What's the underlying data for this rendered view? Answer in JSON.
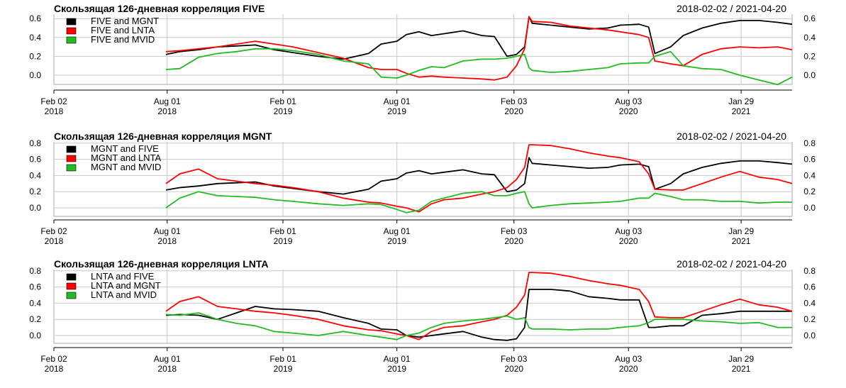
{
  "chart_data": [
    {
      "type": "line",
      "title": "Скользящая 126-дневная корреляция FIVE",
      "date_range": "2018-02-02 / 2021-04-20",
      "x_ticks": [
        {
          "day": 0,
          "line1": "Feb 02",
          "line2": "2018"
        },
        {
          "day": 180,
          "line1": "Aug 01",
          "line2": "2018"
        },
        {
          "day": 364,
          "line1": "Feb 01",
          "line2": "2019"
        },
        {
          "day": 545,
          "line1": "Aug 01",
          "line2": "2019"
        },
        {
          "day": 731,
          "line1": "Feb 03",
          "line2": "2020"
        },
        {
          "day": 913,
          "line1": "Aug 03",
          "line2": "2020"
        },
        {
          "day": 1092,
          "line1": "Jan 29",
          "line2": "2021"
        }
      ],
      "x_range": [
        0,
        1173
      ],
      "data_start_day": 178,
      "ylim": [
        -0.13,
        0.63
      ],
      "y_ticks": [
        "0.0",
        "0.2",
        "0.4",
        "0.6"
      ],
      "legend": [
        "FIVE and MGNT",
        "FIVE and LNTA",
        "FIVE and MVID"
      ],
      "series": [
        {
          "name": "FIVE and MGNT",
          "color": "#000000",
          "x": [
            178,
            200,
            230,
            260,
            290,
            320,
            350,
            380,
            420,
            460,
            500,
            520,
            545,
            560,
            580,
            600,
            620,
            650,
            680,
            700,
            720,
            735,
            748,
            755,
            760,
            790,
            820,
            850,
            880,
            900,
            930,
            945,
            955,
            980,
            1000,
            1030,
            1060,
            1090,
            1120,
            1150,
            1173
          ],
          "values": [
            0.22,
            0.25,
            0.27,
            0.3,
            0.31,
            0.32,
            0.27,
            0.24,
            0.2,
            0.17,
            0.23,
            0.33,
            0.36,
            0.43,
            0.46,
            0.42,
            0.44,
            0.47,
            0.42,
            0.41,
            0.2,
            0.22,
            0.3,
            0.62,
            0.55,
            0.53,
            0.51,
            0.49,
            0.5,
            0.53,
            0.54,
            0.51,
            0.23,
            0.3,
            0.42,
            0.5,
            0.55,
            0.58,
            0.58,
            0.56,
            0.54
          ]
        },
        {
          "name": "FIVE and LNTA",
          "color": "#ff0000",
          "x": [
            178,
            200,
            230,
            260,
            290,
            320,
            350,
            380,
            420,
            460,
            500,
            520,
            545,
            560,
            580,
            600,
            620,
            650,
            680,
            700,
            720,
            735,
            748,
            755,
            760,
            790,
            820,
            850,
            880,
            900,
            930,
            945,
            955,
            980,
            1000,
            1030,
            1060,
            1090,
            1120,
            1150,
            1173
          ],
          "values": [
            0.25,
            0.26,
            0.28,
            0.3,
            0.33,
            0.36,
            0.33,
            0.3,
            0.24,
            0.18,
            0.08,
            0.06,
            0.06,
            0.02,
            -0.02,
            -0.01,
            -0.02,
            -0.03,
            -0.04,
            -0.05,
            -0.02,
            0.1,
            0.28,
            0.62,
            0.57,
            0.56,
            0.52,
            0.5,
            0.48,
            0.46,
            0.43,
            0.4,
            0.15,
            0.12,
            0.1,
            0.22,
            0.28,
            0.3,
            0.29,
            0.3,
            0.27
          ]
        },
        {
          "name": "FIVE and MVID",
          "color": "#22bb22",
          "x": [
            178,
            200,
            230,
            260,
            290,
            320,
            350,
            380,
            420,
            460,
            500,
            520,
            545,
            560,
            580,
            600,
            620,
            650,
            680,
            700,
            720,
            735,
            748,
            755,
            760,
            790,
            820,
            850,
            880,
            900,
            930,
            945,
            955,
            980,
            1000,
            1030,
            1060,
            1090,
            1120,
            1150,
            1173
          ],
          "values": [
            0.06,
            0.07,
            0.19,
            0.23,
            0.25,
            0.28,
            0.28,
            0.26,
            0.22,
            0.15,
            0.12,
            -0.02,
            -0.03,
            0.0,
            0.05,
            0.09,
            0.08,
            0.15,
            0.17,
            0.17,
            0.18,
            0.2,
            0.22,
            0.08,
            0.05,
            0.03,
            0.04,
            0.06,
            0.08,
            0.12,
            0.13,
            0.13,
            0.2,
            0.25,
            0.1,
            0.07,
            0.06,
            0.0,
            -0.05,
            -0.1,
            -0.02
          ]
        }
      ]
    },
    {
      "type": "line",
      "title": "Скользящая 126-дневная корреляция MGNT",
      "date_range": "2018-02-02 / 2021-04-20",
      "x_ticks": [
        {
          "day": 0,
          "line1": "Feb 02",
          "line2": "2018"
        },
        {
          "day": 180,
          "line1": "Aug 01",
          "line2": "2018"
        },
        {
          "day": 364,
          "line1": "Feb 01",
          "line2": "2019"
        },
        {
          "day": 545,
          "line1": "Aug 01",
          "line2": "2019"
        },
        {
          "day": 731,
          "line1": "Feb 03",
          "line2": "2020"
        },
        {
          "day": 913,
          "line1": "Aug 03",
          "line2": "2020"
        },
        {
          "day": 1092,
          "line1": "Jan 29",
          "line2": "2021"
        }
      ],
      "x_range": [
        0,
        1173
      ],
      "data_start_day": 178,
      "ylim": [
        -0.12,
        0.8
      ],
      "y_ticks": [
        "0.0",
        "0.2",
        "0.4",
        "0.6",
        "0.8"
      ],
      "legend": [
        "MGNT and FIVE",
        "MGNT and LNTA",
        "MGNT and MVID"
      ],
      "series": [
        {
          "name": "MGNT and FIVE",
          "color": "#000000",
          "x": [
            178,
            200,
            230,
            260,
            290,
            320,
            350,
            380,
            420,
            460,
            500,
            520,
            545,
            560,
            580,
            600,
            620,
            650,
            680,
            700,
            720,
            735,
            748,
            755,
            760,
            790,
            820,
            850,
            880,
            900,
            930,
            945,
            955,
            980,
            1000,
            1030,
            1060,
            1090,
            1120,
            1150,
            1173
          ],
          "values": [
            0.22,
            0.25,
            0.27,
            0.3,
            0.31,
            0.32,
            0.27,
            0.24,
            0.2,
            0.17,
            0.23,
            0.33,
            0.36,
            0.43,
            0.46,
            0.42,
            0.44,
            0.47,
            0.42,
            0.41,
            0.2,
            0.22,
            0.3,
            0.62,
            0.55,
            0.53,
            0.51,
            0.49,
            0.5,
            0.53,
            0.54,
            0.51,
            0.23,
            0.3,
            0.42,
            0.5,
            0.55,
            0.58,
            0.58,
            0.56,
            0.54
          ]
        },
        {
          "name": "MGNT and LNTA",
          "color": "#ff0000",
          "x": [
            178,
            200,
            230,
            260,
            290,
            320,
            350,
            380,
            420,
            460,
            500,
            520,
            545,
            560,
            580,
            600,
            620,
            650,
            680,
            700,
            720,
            735,
            748,
            755,
            760,
            790,
            820,
            850,
            880,
            900,
            930,
            945,
            955,
            980,
            1000,
            1030,
            1060,
            1090,
            1120,
            1150,
            1173
          ],
          "values": [
            0.3,
            0.42,
            0.48,
            0.36,
            0.33,
            0.3,
            0.28,
            0.25,
            0.2,
            0.12,
            0.07,
            0.06,
            0.02,
            0.0,
            -0.05,
            0.05,
            0.1,
            0.12,
            0.17,
            0.2,
            0.25,
            0.35,
            0.5,
            0.78,
            0.78,
            0.77,
            0.73,
            0.68,
            0.64,
            0.62,
            0.57,
            0.42,
            0.23,
            0.22,
            0.22,
            0.3,
            0.38,
            0.45,
            0.38,
            0.35,
            0.3
          ]
        },
        {
          "name": "MGNT and MVID",
          "color": "#22bb22",
          "x": [
            178,
            200,
            230,
            260,
            290,
            320,
            350,
            380,
            420,
            460,
            500,
            520,
            545,
            560,
            580,
            600,
            620,
            650,
            680,
            700,
            720,
            735,
            748,
            755,
            760,
            790,
            820,
            850,
            880,
            900,
            930,
            945,
            955,
            980,
            1000,
            1030,
            1060,
            1090,
            1120,
            1150,
            1173
          ],
          "values": [
            0.0,
            0.12,
            0.2,
            0.15,
            0.14,
            0.13,
            0.1,
            0.08,
            0.05,
            0.03,
            0.05,
            0.04,
            -0.02,
            -0.06,
            -0.03,
            0.08,
            0.12,
            0.18,
            0.2,
            0.15,
            0.15,
            0.18,
            0.2,
            0.05,
            0.0,
            0.03,
            0.05,
            0.06,
            0.07,
            0.08,
            0.12,
            0.12,
            0.18,
            0.14,
            0.1,
            0.1,
            0.08,
            0.08,
            0.06,
            0.07,
            0.07
          ]
        }
      ]
    },
    {
      "type": "line",
      "title": "Скользящая 126-дневная корреляция LNTA",
      "date_range": "2018-02-02 / 2021-04-20",
      "x_ticks": [
        {
          "day": 0,
          "line1": "Feb 02",
          "line2": "2018"
        },
        {
          "day": 180,
          "line1": "Aug 01",
          "line2": "2018"
        },
        {
          "day": 364,
          "line1": "Feb 01",
          "line2": "2019"
        },
        {
          "day": 545,
          "line1": "Aug 01",
          "line2": "2019"
        },
        {
          "day": 731,
          "line1": "Feb 03",
          "line2": "2020"
        },
        {
          "day": 913,
          "line1": "Aug 03",
          "line2": "2020"
        },
        {
          "day": 1092,
          "line1": "Jan 29",
          "line2": "2021"
        }
      ],
      "x_range": [
        0,
        1173
      ],
      "data_start_day": 178,
      "ylim": [
        -0.12,
        0.8
      ],
      "y_ticks": [
        "0.0",
        "0.2",
        "0.4",
        "0.6",
        "0.8"
      ],
      "legend": [
        "LNTA and FIVE",
        "LNTA and MGNT",
        "LNTA and MVID"
      ],
      "series": [
        {
          "name": "LNTA and FIVE",
          "color": "#000000",
          "x": [
            178,
            200,
            230,
            260,
            290,
            320,
            350,
            380,
            420,
            460,
            500,
            520,
            545,
            560,
            580,
            600,
            620,
            650,
            680,
            700,
            720,
            735,
            748,
            755,
            760,
            790,
            820,
            850,
            880,
            900,
            930,
            945,
            955,
            980,
            1000,
            1030,
            1060,
            1090,
            1120,
            1150,
            1173
          ],
          "values": [
            0.25,
            0.26,
            0.25,
            0.2,
            0.28,
            0.36,
            0.33,
            0.32,
            0.3,
            0.22,
            0.15,
            0.08,
            0.07,
            0.0,
            -0.02,
            0.0,
            0.02,
            0.05,
            -0.02,
            -0.05,
            -0.06,
            -0.04,
            0.1,
            0.57,
            0.57,
            0.57,
            0.55,
            0.48,
            0.46,
            0.44,
            0.44,
            0.1,
            0.1,
            0.12,
            0.12,
            0.25,
            0.27,
            0.3,
            0.3,
            0.3,
            0.3
          ]
        },
        {
          "name": "LNTA and MGNT",
          "color": "#ff0000",
          "x": [
            178,
            200,
            230,
            260,
            290,
            320,
            350,
            380,
            420,
            460,
            500,
            520,
            545,
            560,
            580,
            600,
            620,
            650,
            680,
            700,
            720,
            735,
            748,
            755,
            760,
            790,
            820,
            850,
            880,
            900,
            930,
            945,
            955,
            980,
            1000,
            1030,
            1060,
            1090,
            1120,
            1150,
            1173
          ],
          "values": [
            0.3,
            0.42,
            0.48,
            0.36,
            0.33,
            0.3,
            0.28,
            0.25,
            0.2,
            0.12,
            0.07,
            0.06,
            0.02,
            0.0,
            -0.05,
            0.05,
            0.1,
            0.12,
            0.17,
            0.2,
            0.25,
            0.35,
            0.5,
            0.78,
            0.78,
            0.77,
            0.73,
            0.68,
            0.64,
            0.62,
            0.57,
            0.42,
            0.23,
            0.22,
            0.22,
            0.3,
            0.38,
            0.45,
            0.38,
            0.35,
            0.3
          ]
        },
        {
          "name": "LNTA and MVID",
          "color": "#22bb22",
          "x": [
            178,
            200,
            230,
            260,
            290,
            320,
            350,
            380,
            420,
            460,
            500,
            520,
            545,
            560,
            580,
            600,
            620,
            650,
            680,
            700,
            720,
            735,
            748,
            755,
            760,
            790,
            820,
            850,
            880,
            900,
            930,
            945,
            955,
            980,
            1000,
            1030,
            1060,
            1090,
            1120,
            1150,
            1173
          ],
          "values": [
            0.26,
            0.25,
            0.28,
            0.2,
            0.15,
            0.12,
            0.05,
            0.03,
            0.0,
            0.05,
            0.0,
            -0.02,
            -0.05,
            0.0,
            0.03,
            0.1,
            0.15,
            0.18,
            0.2,
            0.22,
            0.24,
            0.2,
            0.22,
            0.1,
            0.08,
            0.08,
            0.07,
            0.08,
            0.08,
            0.1,
            0.12,
            0.16,
            0.2,
            0.2,
            0.2,
            0.18,
            0.17,
            0.15,
            0.16,
            0.1,
            0.1
          ]
        }
      ]
    }
  ]
}
